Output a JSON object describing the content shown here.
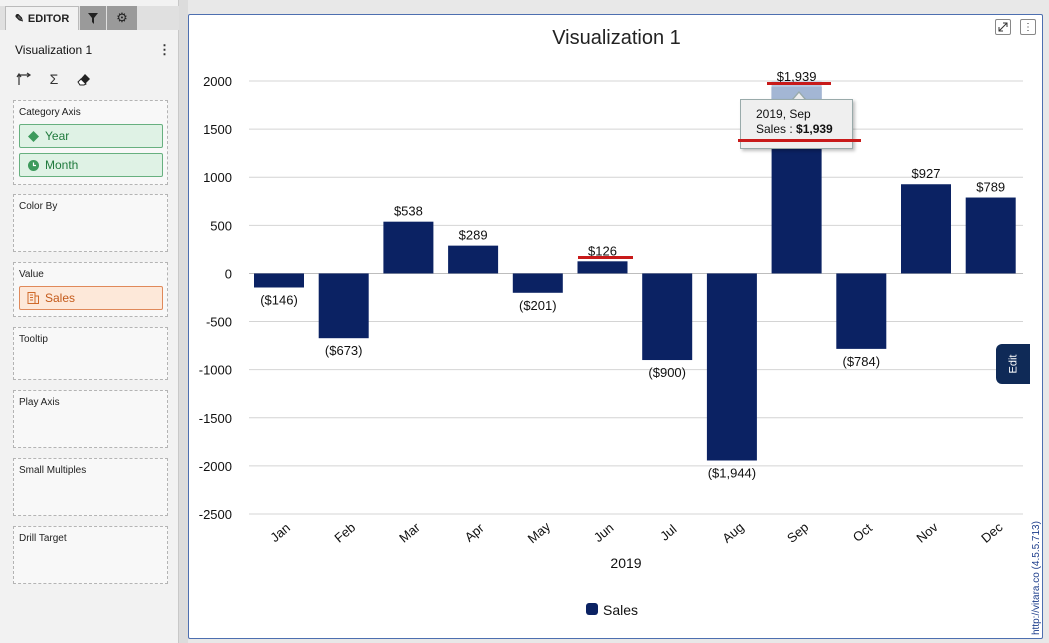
{
  "sidebar": {
    "tabs": {
      "editor": "EDITOR"
    },
    "viz_title": "Visualization 1",
    "menu_glyph": "⋮",
    "tools": [
      "axis-swap-icon",
      "sigma-icon",
      "eraser-icon"
    ],
    "wells": {
      "category_axis": {
        "label": "Category Axis",
        "pills": [
          "Year",
          "Month"
        ]
      },
      "color_by": {
        "label": "Color By"
      },
      "value": {
        "label": "Value",
        "pills": [
          "Sales"
        ]
      },
      "tooltip": {
        "label": "Tooltip"
      },
      "play_axis": {
        "label": "Play Axis"
      },
      "small_multiples": {
        "label": "Small Multiples"
      },
      "drill_target": {
        "label": "Drill Target"
      }
    }
  },
  "edit_tab": "Edit",
  "credit": "http://vitara.co (4.5.5.713)",
  "tooltip": {
    "line1": "2019, Sep",
    "prefix": "Sales : ",
    "value": "$1,939"
  },
  "colors": {
    "bar": "#0b2263",
    "highlight": "#b9cbe6",
    "accent": "#c81a1a",
    "panel_border": "#4d6fb0"
  },
  "chart_data": {
    "type": "bar",
    "title": "Visualization 1",
    "xlabel": "2019",
    "ylabel": "",
    "categories": [
      "Jan",
      "Feb",
      "Mar",
      "Apr",
      "May",
      "Jun",
      "Jul",
      "Aug",
      "Sep",
      "Oct",
      "Nov",
      "Dec"
    ],
    "series": [
      {
        "name": "Sales",
        "values": [
          -146,
          -673,
          538,
          289,
          -201,
          126,
          -900,
          -1944,
          1939,
          -784,
          927,
          789
        ],
        "labels": [
          "($146)",
          "($673)",
          "$538",
          "$289",
          "($201)",
          "$126",
          "($900)",
          "($1,944)",
          "$1,939",
          "($784)",
          "$927",
          "$789"
        ]
      }
    ],
    "ylim": [
      -2500,
      2000
    ],
    "yticks": [
      2000,
      1500,
      1000,
      500,
      0,
      -500,
      -1000,
      -1500,
      -2000,
      -2500
    ],
    "grid": true,
    "legend": "bottom-center",
    "highlighted_category": "Sep"
  }
}
